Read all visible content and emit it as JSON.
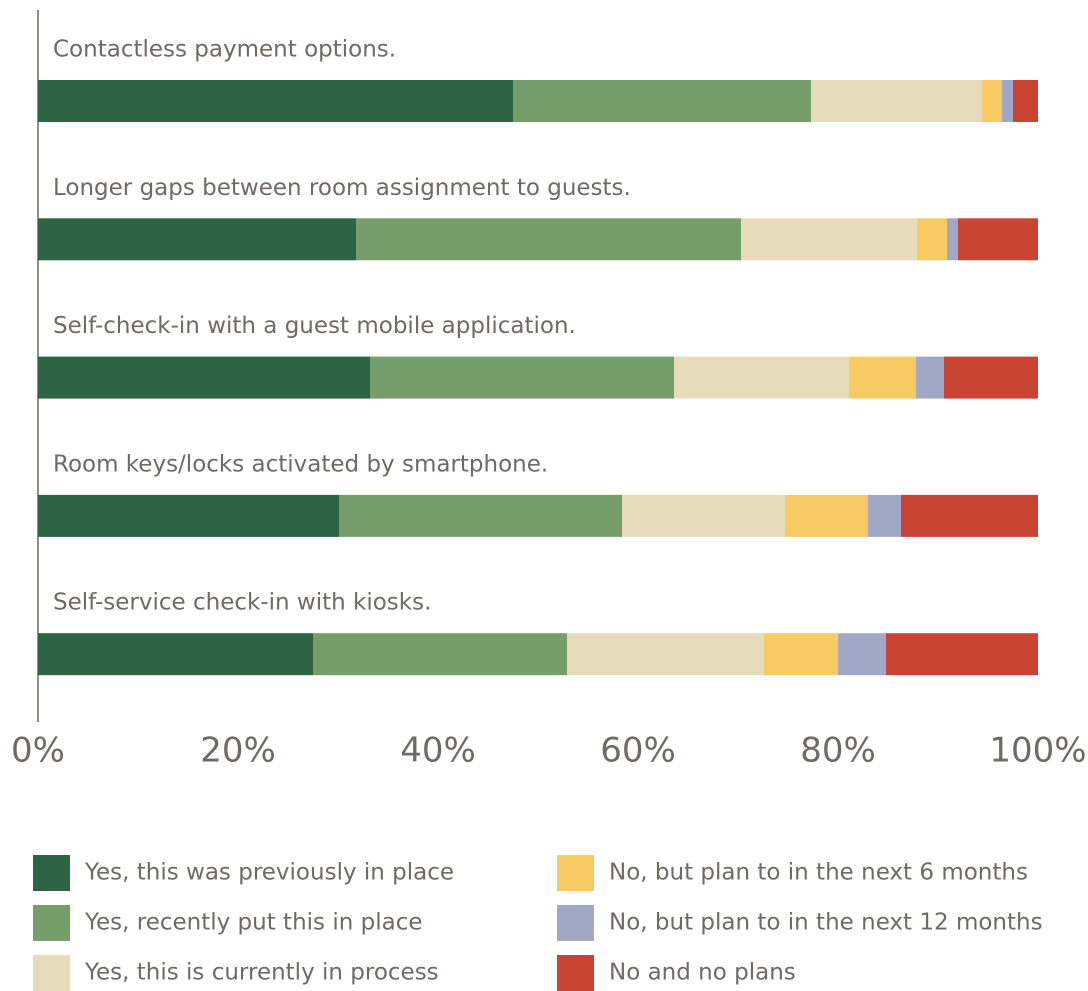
{
  "chart_data": {
    "type": "stacked-bar-horizontal",
    "categories": [
      "Contactless payment options.",
      "Longer gaps between room assignment to guests.",
      "Self-check-in with a guest mobile application.",
      "Room keys/locks activated by smartphone.",
      "Self-service check-in with kiosks."
    ],
    "series": [
      {
        "name": "Yes, this was previously in place",
        "color": "#2d6444",
        "values": [
          47.5,
          31.8,
          33.2,
          30.1,
          27.5
        ]
      },
      {
        "name": "Yes, recently put this in place",
        "color": "#769e6b",
        "values": [
          29.8,
          38.5,
          30.4,
          28.3,
          25.4
        ]
      },
      {
        "name": "Yes, this is currently in process",
        "color": "#e6dcbc",
        "values": [
          17.1,
          17.6,
          17.5,
          16.3,
          19.7
        ]
      },
      {
        "name": "No, but plan to in the next 6 months",
        "color": "#f8ca63",
        "values": [
          2.0,
          3.0,
          6.7,
          8.3,
          7.4
        ]
      },
      {
        "name": "No, but plan to in the next 12 months",
        "color": "#a0a8c6",
        "values": [
          1.1,
          1.1,
          2.8,
          3.3,
          4.8
        ]
      },
      {
        "name": "No and no plans",
        "color": "#c94433",
        "values": [
          2.5,
          8.0,
          9.4,
          13.7,
          15.2
        ]
      }
    ],
    "xlim": [
      0,
      100
    ],
    "xticks": [
      {
        "value": 0,
        "label": "0%"
      },
      {
        "value": 20,
        "label": "20%"
      },
      {
        "value": 40,
        "label": "40%"
      },
      {
        "value": 60,
        "label": "60%"
      },
      {
        "value": 80,
        "label": "80%"
      },
      {
        "value": 100,
        "label": "100%"
      }
    ]
  }
}
